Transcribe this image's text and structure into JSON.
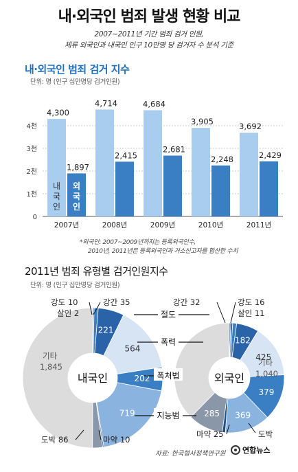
{
  "header": {
    "title": "내·외국인 범죄 발생 현황 비교",
    "subtitle_line1": "2007~2011년 기간 범죄 검거 인원,",
    "subtitle_line2": "체류 외국인과 내국인 인구 10만명 당 검거자 수 분석 기준"
  },
  "section1": {
    "title": "내·외국인 범죄 검거 지수",
    "unit": "단위: 명 (인구 십만명당 검거인원)",
    "note_line1": "*외국인: 2007~2009년까지는 등록외국인수,",
    "note_line2": "2010년, 2011년은 등록외국인과 거소신고자를 합산한 수치"
  },
  "section2": {
    "title": "2011년 범죄 유형별 검거인원지수",
    "unit": "단위: 명 (인구 십만명당 검거인원)"
  },
  "footer": {
    "source": "자료: 한국형사정책연구원",
    "logo": "연합뉴스"
  },
  "colors": {
    "domestic_bar": "#a9cdef",
    "foreign_bar": "#3a7fc4",
    "accent": "#1f6fbf",
    "donut_gray": "#dcdcdc"
  },
  "chart_data": [
    {
      "type": "bar",
      "categories": [
        "2007년",
        "2008년",
        "2009년",
        "2010년",
        "2011년"
      ],
      "series": [
        {
          "name": "내국인",
          "values": [
            4300,
            4714,
            4684,
            3905,
            3692
          ]
        },
        {
          "name": "외국인",
          "values": [
            1897,
            2415,
            2681,
            2248,
            2429
          ]
        }
      ],
      "value_labels": {
        "내국인": [
          "4,300",
          "4,714",
          "4,684",
          "3,905",
          "3,692"
        ],
        "외국인": [
          "1,897",
          "2,415",
          "2,681",
          "2,248",
          "2,429"
        ]
      },
      "y_ticks": [
        0,
        1000,
        2000,
        3000,
        4000
      ],
      "y_tick_labels": [
        "0",
        "1천",
        "2천",
        "3천",
        "4천"
      ],
      "ylim": [
        0,
        5000
      ],
      "grid": true,
      "legend": "inside first bar group"
    },
    {
      "type": "pie",
      "center_label": "내국인",
      "slices": [
        {
          "label": "살인",
          "value": 2
        },
        {
          "label": "강도",
          "value": 10
        },
        {
          "label": "강간",
          "value": 35
        },
        {
          "label": "절도",
          "value": 221
        },
        {
          "label": "폭력",
          "value": 564
        },
        {
          "label": "폭처법",
          "value": 202
        },
        {
          "label": "지능범",
          "value": 719
        },
        {
          "label": "마약",
          "value": 10
        },
        {
          "label": "도박",
          "value": 86
        },
        {
          "label": "기타",
          "value": 1845
        }
      ],
      "outside_labels": {
        "강도": "강도 10",
        "살인": "살인 2",
        "강간": "강간 35",
        "도박": "도박 86",
        "마약": "마약 10",
        "기타": "기타\n1,845"
      }
    },
    {
      "type": "pie",
      "center_label": "외국인",
      "slices": [
        {
          "label": "살인",
          "value": 11
        },
        {
          "label": "강도",
          "value": 16
        },
        {
          "label": "강간",
          "value": 32
        },
        {
          "label": "절도",
          "value": 182
        },
        {
          "label": "폭력",
          "value": 425
        },
        {
          "label": "폭처법",
          "value": 379
        },
        {
          "label": "지능범",
          "value": 369
        },
        {
          "label": "마약",
          "value": 25
        },
        {
          "label": "도박",
          "value": 285
        },
        {
          "label": "기타",
          "value": 1040
        }
      ],
      "outside_labels": {
        "강간": "강간 32",
        "강도": "강도 16",
        "살인": "살인 11",
        "마약": "마약 25",
        "도박": "도박",
        "기타": "기타\n1,040"
      }
    }
  ],
  "crime_types": {
    "theft": "절도",
    "violence": "폭력",
    "violence_act": "폭처법",
    "intellectual": "지능범"
  }
}
